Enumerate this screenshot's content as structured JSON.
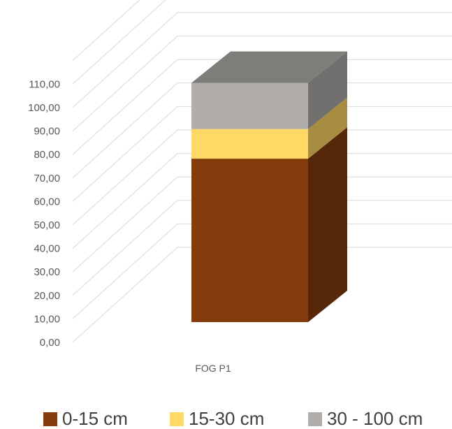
{
  "chart_data": {
    "type": "bar",
    "stacked": true,
    "three_d": true,
    "title": "",
    "xlabel": "",
    "ylabel": "",
    "categories": [
      "FOG P1"
    ],
    "series": [
      {
        "name": "0-15 cm",
        "values": [
          69.0
        ],
        "color": "#843c0c"
      },
      {
        "name": "15-30 cm",
        "values": [
          12.5
        ],
        "color": "#ffd966"
      },
      {
        "name": "30 - 100 cm",
        "values": [
          19.5
        ],
        "color": "#b0adaa"
      }
    ],
    "ylim": [
      0,
      110
    ],
    "y_ticks": [
      "0,00",
      "10,00",
      "20,00",
      "30,00",
      "40,00",
      "50,00",
      "60,00",
      "70,00",
      "80,00",
      "90,00",
      "100,00",
      "110,00"
    ],
    "grid": true,
    "legend": "bottom"
  }
}
